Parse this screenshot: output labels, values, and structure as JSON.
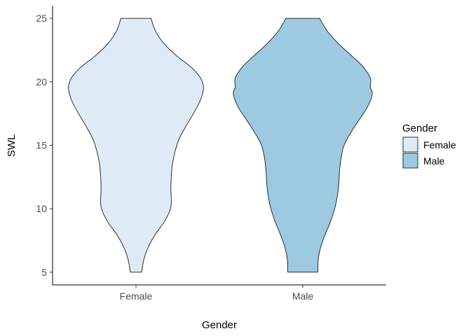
{
  "chart_data": {
    "type": "violin",
    "xlabel": "Gender",
    "ylabel": "SWL",
    "categories": [
      "Female",
      "Male"
    ],
    "ylim": [
      4,
      26
    ],
    "yticks": [
      5,
      10,
      15,
      20,
      25
    ],
    "grid": false,
    "legend": {
      "title": "Gender",
      "placement": "right",
      "entries": [
        "Female",
        "Male"
      ]
    },
    "series": [
      {
        "name": "Female",
        "color": "#deebf7",
        "range": [
          5,
          25
        ],
        "density_profile": [
          {
            "y": 5,
            "width": 0.15
          },
          {
            "y": 6,
            "width": 0.21
          },
          {
            "y": 7,
            "width": 0.33
          },
          {
            "y": 8,
            "width": 0.52
          },
          {
            "y": 9,
            "width": 0.76
          },
          {
            "y": 10,
            "width": 0.92
          },
          {
            "y": 10.8,
            "width": 0.94
          },
          {
            "y": 11.5,
            "width": 0.93
          },
          {
            "y": 12.5,
            "width": 0.94
          },
          {
            "y": 13.5,
            "width": 0.97
          },
          {
            "y": 14.5,
            "width": 1.04
          },
          {
            "y": 15.5,
            "width": 1.15
          },
          {
            "y": 16.5,
            "width": 1.33
          },
          {
            "y": 17.5,
            "width": 1.53
          },
          {
            "y": 18.5,
            "width": 1.71
          },
          {
            "y": 19.5,
            "width": 1.8
          },
          {
            "y": 20.3,
            "width": 1.72
          },
          {
            "y": 21.2,
            "width": 1.45
          },
          {
            "y": 22,
            "width": 1.1
          },
          {
            "y": 23,
            "width": 0.75
          },
          {
            "y": 24,
            "width": 0.52
          },
          {
            "y": 25,
            "width": 0.4
          }
        ]
      },
      {
        "name": "Male",
        "color": "#9ecae1",
        "range": [
          5,
          25
        ],
        "density_profile": [
          {
            "y": 5,
            "width": 0.4
          },
          {
            "y": 6,
            "width": 0.41
          },
          {
            "y": 7,
            "width": 0.48
          },
          {
            "y": 8,
            "width": 0.6
          },
          {
            "y": 9,
            "width": 0.74
          },
          {
            "y": 10,
            "width": 0.85
          },
          {
            "y": 11,
            "width": 0.92
          },
          {
            "y": 12,
            "width": 0.96
          },
          {
            "y": 13,
            "width": 0.98
          },
          {
            "y": 14,
            "width": 1.02
          },
          {
            "y": 15,
            "width": 1.1
          },
          {
            "y": 16,
            "width": 1.28
          },
          {
            "y": 17,
            "width": 1.5
          },
          {
            "y": 18,
            "width": 1.72
          },
          {
            "y": 19,
            "width": 1.85
          },
          {
            "y": 19.6,
            "width": 1.8
          },
          {
            "y": 20.3,
            "width": 1.8
          },
          {
            "y": 21.2,
            "width": 1.6
          },
          {
            "y": 22,
            "width": 1.32
          },
          {
            "y": 23,
            "width": 0.95
          },
          {
            "y": 24,
            "width": 0.65
          },
          {
            "y": 25,
            "width": 0.45
          }
        ]
      }
    ]
  }
}
